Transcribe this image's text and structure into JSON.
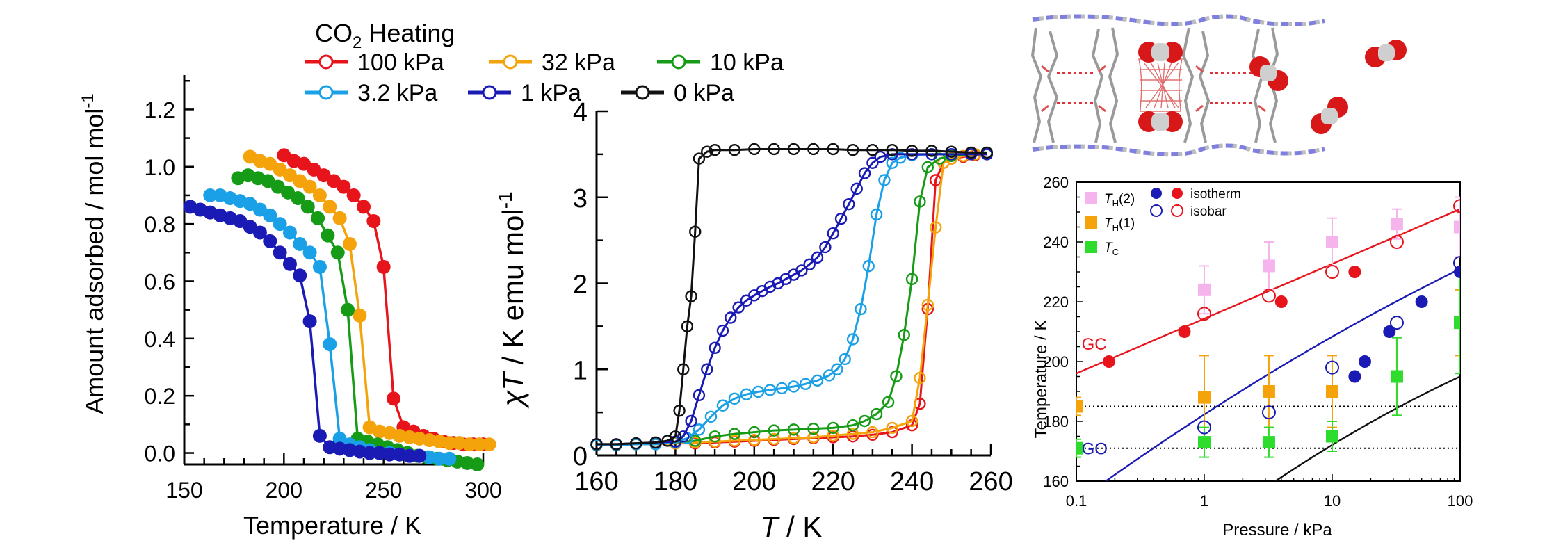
{
  "legend": {
    "title_main": "CO",
    "title_sub": "2",
    "title_rest": " Heating",
    "entries": [
      {
        "label": "100 kPa",
        "color": "#e8141c"
      },
      {
        "label": "32 kPa",
        "color": "#f5a30a"
      },
      {
        "label": "10 kPa",
        "color": "#169b17"
      },
      {
        "label": "3.2 kPa",
        "color": "#1aa0e6"
      },
      {
        "label": "1 kPa",
        "color": "#1a1ab4"
      },
      {
        "label": "0 kPa",
        "color": "#111111"
      }
    ]
  },
  "chart_data": [
    {
      "type": "line",
      "xlabel": "Temperature / K",
      "ylabel_main": "Amount adsorbed / mol mol",
      "ylabel_sup": "-1",
      "xlim": [
        150,
        300
      ],
      "ylim": [
        -0.04,
        1.32
      ],
      "xticks": [
        "150",
        "200",
        "250",
        "300"
      ],
      "yticks": [
        "0.0",
        "0.2",
        "0.4",
        "0.6",
        "0.8",
        "1.0",
        "1.2"
      ],
      "series": [
        {
          "name": "100 kPa",
          "color": "#e8141c",
          "x": [
            200,
            205,
            210,
            215,
            220,
            225,
            230,
            235,
            240,
            245,
            250,
            255,
            260,
            265,
            270,
            275,
            280,
            285,
            290,
            295,
            300
          ],
          "y": [
            1.04,
            1.02,
            1.01,
            0.99,
            0.97,
            0.95,
            0.93,
            0.9,
            0.86,
            0.81,
            0.65,
            0.19,
            0.09,
            0.075,
            0.06,
            0.05,
            0.04,
            0.035,
            0.03,
            0.03,
            0.03
          ]
        },
        {
          "name": "32 kPa",
          "color": "#f5a30a",
          "x": [
            183,
            188,
            193,
            198,
            203,
            208,
            213,
            218,
            223,
            228,
            233,
            238,
            243,
            248,
            253,
            258,
            263,
            268,
            273,
            278,
            283,
            288,
            293,
            298,
            303
          ],
          "y": [
            1.035,
            1.02,
            1.01,
            0.99,
            0.97,
            0.95,
            0.93,
            0.9,
            0.86,
            0.82,
            0.73,
            0.48,
            0.09,
            0.075,
            0.07,
            0.06,
            0.055,
            0.05,
            0.045,
            0.04,
            0.035,
            0.035,
            0.03,
            0.03,
            0.03
          ]
        },
        {
          "name": "10 kPa",
          "color": "#169b17",
          "x": [
            177,
            182,
            187,
            192,
            197,
            202,
            207,
            212,
            217,
            222,
            227,
            232,
            237,
            242,
            247,
            252,
            257,
            262,
            267,
            272,
            277,
            282,
            287,
            292,
            297
          ],
          "y": [
            0.96,
            0.97,
            0.96,
            0.95,
            0.93,
            0.91,
            0.89,
            0.86,
            0.82,
            0.76,
            0.7,
            0.5,
            0.05,
            0.04,
            0.03,
            0.02,
            0.01,
            0.0,
            -0.01,
            -0.015,
            -0.02,
            -0.025,
            -0.03,
            -0.035,
            -0.04
          ]
        },
        {
          "name": "3.2 kPa",
          "color": "#1aa0e6",
          "x": [
            163,
            168,
            173,
            178,
            183,
            188,
            193,
            198,
            203,
            208,
            213,
            218,
            223,
            228,
            233,
            238,
            243,
            248,
            253,
            258,
            263,
            268,
            273,
            278,
            283
          ],
          "y": [
            0.9,
            0.9,
            0.89,
            0.88,
            0.87,
            0.85,
            0.83,
            0.8,
            0.77,
            0.73,
            0.7,
            0.65,
            0.38,
            0.05,
            0.03,
            0.02,
            0.01,
            0.0,
            0.0,
            -0.005,
            -0.01,
            -0.01,
            -0.015,
            -0.02,
            -0.02
          ]
        },
        {
          "name": "1 kPa",
          "color": "#1a1ab4",
          "x": [
            153,
            158,
            163,
            168,
            173,
            178,
            183,
            188,
            193,
            198,
            203,
            208,
            213,
            218,
            223,
            228,
            233,
            238,
            243,
            248,
            253,
            258,
            263,
            268
          ],
          "y": [
            0.86,
            0.85,
            0.84,
            0.83,
            0.82,
            0.81,
            0.79,
            0.77,
            0.74,
            0.7,
            0.66,
            0.62,
            0.46,
            0.06,
            0.02,
            0.015,
            0.01,
            0.005,
            0.0,
            0.0,
            -0.005,
            -0.005,
            -0.01,
            -0.01
          ]
        }
      ]
    },
    {
      "type": "line",
      "xlabel_italic": "T",
      "xlabel_rest": " / K",
      "ylabel_italic": "χT",
      "ylabel_rest": " / K emu mol",
      "ylabel_sup": "-1",
      "xlim": [
        160,
        260
      ],
      "ylim": [
        0,
        4
      ],
      "xticks": [
        "160",
        "180",
        "200",
        "220",
        "240",
        "260"
      ],
      "yticks": [
        "0",
        "1",
        "2",
        "3",
        "4"
      ],
      "series": [
        {
          "name": "100 kPa",
          "color": "#e8141c",
          "x": [
            160,
            165,
            170,
            175,
            180,
            185,
            190,
            195,
            200,
            205,
            210,
            215,
            220,
            225,
            230,
            235,
            240,
            242,
            244,
            246,
            248,
            250,
            253,
            256,
            259
          ],
          "y": [
            0.12,
            0.12,
            0.13,
            0.13,
            0.14,
            0.14,
            0.15,
            0.16,
            0.17,
            0.18,
            0.19,
            0.2,
            0.21,
            0.22,
            0.24,
            0.27,
            0.35,
            0.6,
            1.7,
            3.2,
            3.4,
            3.45,
            3.47,
            3.49,
            3.5
          ]
        },
        {
          "name": "32 kPa",
          "color": "#f5a30a",
          "x": [
            160,
            165,
            170,
            175,
            180,
            185,
            190,
            195,
            200,
            205,
            210,
            215,
            220,
            225,
            230,
            235,
            240,
            242,
            244,
            246,
            248,
            250,
            253,
            256,
            259
          ],
          "y": [
            0.12,
            0.12,
            0.13,
            0.13,
            0.14,
            0.15,
            0.16,
            0.17,
            0.18,
            0.19,
            0.2,
            0.21,
            0.23,
            0.25,
            0.27,
            0.32,
            0.4,
            0.9,
            1.75,
            2.65,
            3.4,
            3.45,
            3.48,
            3.5,
            3.5
          ]
        },
        {
          "name": "10 kPa",
          "color": "#169b17",
          "x": [
            160,
            165,
            170,
            175,
            180,
            185,
            190,
            195,
            200,
            205,
            210,
            215,
            220,
            225,
            228,
            231,
            234,
            236,
            238,
            240,
            242,
            244,
            247,
            250,
            255,
            259
          ],
          "y": [
            0.12,
            0.12,
            0.13,
            0.14,
            0.15,
            0.17,
            0.22,
            0.25,
            0.27,
            0.29,
            0.3,
            0.31,
            0.32,
            0.35,
            0.4,
            0.48,
            0.62,
            0.92,
            1.4,
            2.05,
            2.95,
            3.35,
            3.45,
            3.48,
            3.5,
            3.5
          ]
        },
        {
          "name": "3.2 kPa",
          "color": "#1aa0e6",
          "x": [
            160,
            165,
            170,
            175,
            180,
            183,
            186,
            189,
            192,
            195,
            198,
            201,
            204,
            207,
            210,
            213,
            216,
            219,
            221,
            223,
            225,
            227,
            229,
            231,
            233,
            235,
            237,
            240,
            245,
            250,
            255,
            259
          ],
          "y": [
            0.12,
            0.12,
            0.13,
            0.13,
            0.15,
            0.2,
            0.3,
            0.45,
            0.58,
            0.66,
            0.71,
            0.74,
            0.76,
            0.78,
            0.8,
            0.83,
            0.87,
            0.93,
            1.0,
            1.12,
            1.35,
            1.7,
            2.2,
            2.8,
            3.2,
            3.4,
            3.46,
            3.49,
            3.5,
            3.5,
            3.5,
            3.5
          ]
        },
        {
          "name": "1 kPa",
          "color": "#1a1ab4",
          "x": [
            160,
            165,
            170,
            175,
            180,
            182,
            184,
            186,
            188,
            190,
            192,
            194,
            196,
            198,
            200,
            202,
            204,
            206,
            208,
            210,
            212,
            214,
            216,
            218,
            220,
            222,
            224,
            226,
            228,
            230,
            232,
            235,
            240,
            245,
            250,
            255,
            259
          ],
          "y": [
            0.13,
            0.13,
            0.14,
            0.15,
            0.16,
            0.22,
            0.4,
            0.7,
            1.0,
            1.25,
            1.45,
            1.6,
            1.72,
            1.8,
            1.86,
            1.91,
            1.96,
            2.0,
            2.05,
            2.1,
            2.15,
            2.22,
            2.3,
            2.42,
            2.58,
            2.75,
            2.92,
            3.1,
            3.28,
            3.4,
            3.47,
            3.5,
            3.5,
            3.5,
            3.5,
            3.5,
            3.5
          ]
        },
        {
          "name": "0 kPa",
          "color": "#111111",
          "x": [
            160,
            165,
            170,
            175,
            178,
            180,
            181,
            182,
            183,
            184,
            185,
            186,
            188,
            190,
            195,
            200,
            205,
            210,
            215,
            220,
            225,
            230,
            235,
            240,
            245,
            250,
            255,
            259
          ],
          "y": [
            0.13,
            0.13,
            0.14,
            0.15,
            0.17,
            0.22,
            0.52,
            1.0,
            1.5,
            1.85,
            2.6,
            3.45,
            3.53,
            3.55,
            3.55,
            3.56,
            3.56,
            3.56,
            3.56,
            3.56,
            3.55,
            3.55,
            3.55,
            3.54,
            3.54,
            3.53,
            3.52,
            3.52
          ]
        }
      ]
    },
    {
      "type": "scatter",
      "xscale": "log",
      "xlabel": "Pressure / kPa",
      "ylabel": "Temperature / K",
      "xlim": [
        0.1,
        100
      ],
      "ylim": [
        160,
        260
      ],
      "xticks": [
        "0.1",
        "1",
        "10",
        "100"
      ],
      "yticks": [
        "160",
        "180",
        "200",
        "220",
        "240",
        "260"
      ],
      "legend": [
        {
          "label_main": "T",
          "label_sub": "H",
          "label_rest": "(2)",
          "marker": "square",
          "color": "#f6b4ec"
        },
        {
          "label_main": "T",
          "label_sub": "H",
          "label_rest": "(1)",
          "marker": "square",
          "color": "#f5a30a"
        },
        {
          "label_main": "T",
          "label_sub": "C",
          "label_rest": "",
          "marker": "square",
          "color": "#2edc2e"
        },
        {
          "label": "isotherm",
          "marker": "filled-circle",
          "colors": [
            "#1a1ab4",
            "#e8141c"
          ]
        },
        {
          "label": "isobar",
          "marker": "open-circle",
          "colors": [
            "#1a1ab4",
            "#e8141c"
          ]
        }
      ],
      "labels": [
        {
          "text": "GC",
          "color": "#e8141c",
          "x": 0.11,
          "y": 204
        },
        {
          "text": "GO",
          "color": "#1a1ab4",
          "x": 0.11,
          "y": 169
        }
      ],
      "hlines": [
        185,
        171
      ],
      "fit_lines": [
        {
          "name": "GC fit",
          "color": "#e8141c",
          "x": [
            0.1,
            100
          ],
          "y": [
            196,
            251
          ]
        },
        {
          "name": "GO fit",
          "color": "#1a1ab4",
          "x": [
            0.17,
            100
          ],
          "y": [
            160,
            231
          ]
        },
        {
          "name": "black line",
          "color": "#111111",
          "x": [
            3.6,
            100
          ],
          "y": [
            160,
            195
          ]
        }
      ],
      "series": [
        {
          "name": "T_H(2)",
          "marker": "square",
          "color": "#f6b4ec",
          "x": [
            1,
            3.2,
            10,
            32,
            100
          ],
          "y": [
            224,
            232,
            240,
            246,
            245
          ],
          "err": [
            8,
            8,
            8,
            5,
            10
          ]
        },
        {
          "name": "T_H(1)",
          "marker": "square",
          "color": "#f5a30a",
          "x": [
            0.1,
            1,
            3.2,
            10,
            32,
            100
          ],
          "y": [
            185,
            188,
            190,
            190,
            195,
            213
          ],
          "err": [
            3,
            14,
            12,
            12,
            13,
            11
          ]
        },
        {
          "name": "T_C",
          "marker": "square",
          "color": "#2edc2e",
          "x": [
            0.1,
            1,
            3.2,
            10,
            32,
            100
          ],
          "y": [
            171,
            173,
            173,
            175,
            195,
            213
          ],
          "err": [
            3,
            5,
            5,
            5,
            13,
            17
          ]
        },
        {
          "name": "isotherm GC",
          "marker": "filled-circle",
          "color": "#e8141c",
          "x": [
            0.18,
            0.7,
            4,
            15
          ],
          "y": [
            200,
            210,
            220,
            230
          ]
        },
        {
          "name": "isotherm GO",
          "marker": "filled-circle",
          "color": "#1a1ab4",
          "x": [
            15,
            18,
            28,
            50,
            100
          ],
          "y": [
            195,
            200,
            210,
            220,
            230
          ]
        },
        {
          "name": "isobar GC",
          "marker": "open-circle",
          "color": "#e8141c",
          "x": [
            1,
            3.2,
            10,
            32,
            100
          ],
          "y": [
            216,
            222,
            230,
            240,
            252
          ]
        },
        {
          "name": "isobar GO",
          "marker": "open-circle",
          "color": "#1a1ab4",
          "x": [
            1,
            3.2,
            10,
            32,
            100
          ],
          "y": [
            178,
            183,
            198,
            213,
            233
          ]
        }
      ]
    }
  ]
}
